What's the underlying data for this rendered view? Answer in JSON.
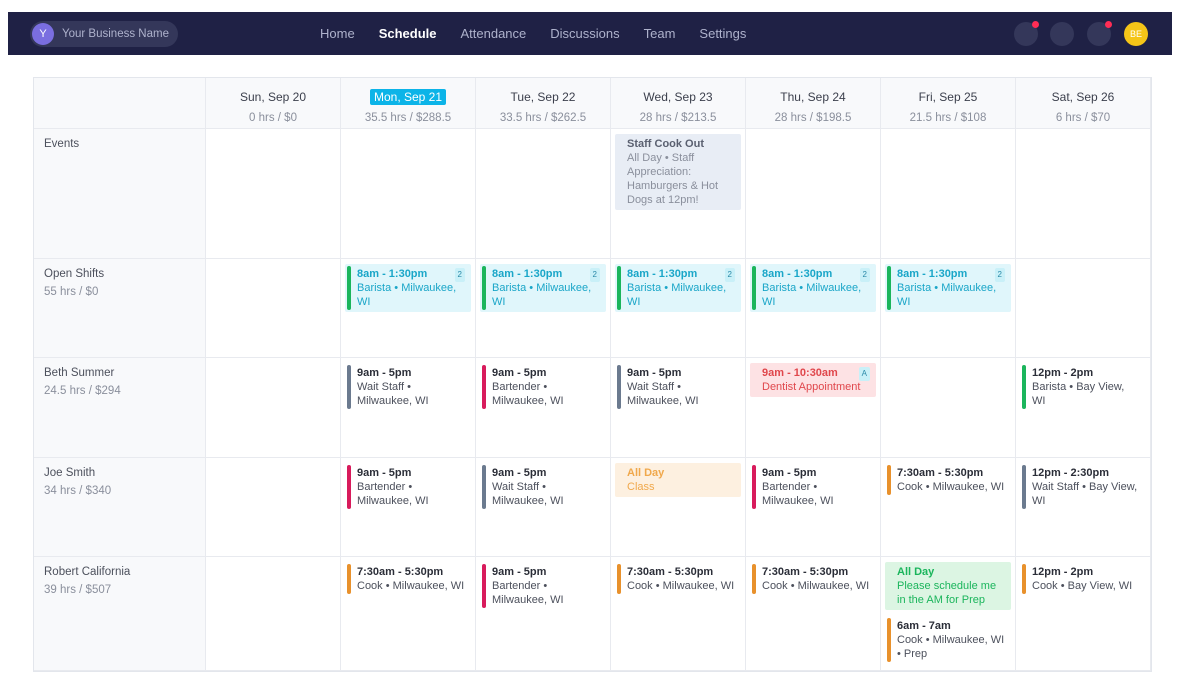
{
  "nav": {
    "avatar": "Y",
    "business": "Your Business Name",
    "items": [
      "Home",
      "Schedule",
      "Attendance",
      "Discussions",
      "Team",
      "Settings"
    ],
    "active": 1,
    "user": "BE"
  },
  "schedule": {
    "days": [
      {
        "date": "Sun, Sep 20",
        "total": "0 hrs / $0"
      },
      {
        "date": "Mon, Sep 21",
        "total": "35.5 hrs / $288.5",
        "today": true
      },
      {
        "date": "Tue, Sep 22",
        "total": "33.5 hrs / $262.5"
      },
      {
        "date": "Wed, Sep 23",
        "total": "28 hrs / $213.5"
      },
      {
        "date": "Thu, Sep 24",
        "total": "28 hrs / $198.5"
      },
      {
        "date": "Fri, Sep 25",
        "total": "21.5 hrs / $108"
      },
      {
        "date": "Sat, Sep 26",
        "total": "6 hrs / $70"
      }
    ],
    "rows": [
      {
        "name": "Events",
        "cells": [
          [],
          [],
          [],
          [
            {
              "title": "Staff Cook Out",
              "detail": "All Day • Staff Appreciation: Hamburgers & Hot Dogs at 12pm!",
              "background": "#e8edf5"
            }
          ],
          [],
          [],
          []
        ]
      },
      {
        "name": "Open Shifts",
        "total": "55 hrs / $0",
        "cells": [
          [],
          [
            {
              "time": "8am - 1:30pm",
              "detail": "Barista • Milwaukee, WI",
              "badge": "2",
              "color": "#1bb55c",
              "background": "#e0f6fb",
              "text": "#1aa6c8"
            }
          ],
          [
            {
              "time": "8am - 1:30pm",
              "detail": "Barista • Milwaukee, WI",
              "badge": "2",
              "color": "#1bb55c",
              "background": "#e0f6fb",
              "text": "#1aa6c8"
            }
          ],
          [
            {
              "time": "8am - 1:30pm",
              "detail": "Barista • Milwaukee, WI",
              "badge": "2",
              "color": "#1bb55c",
              "background": "#e0f6fb",
              "text": "#1aa6c8"
            }
          ],
          [
            {
              "time": "8am - 1:30pm",
              "detail": "Barista • Milwaukee, WI",
              "badge": "2",
              "color": "#1bb55c",
              "background": "#e0f6fb",
              "text": "#1aa6c8"
            }
          ],
          [
            {
              "time": "8am - 1:30pm",
              "detail": "Barista • Milwaukee, WI",
              "badge": "2",
              "color": "#1bb55c",
              "background": "#e0f6fb",
              "text": "#1aa6c8"
            }
          ],
          []
        ]
      },
      {
        "name": "Beth Summer",
        "total": "24.5 hrs / $294",
        "cells": [
          [],
          [
            {
              "time": "9am - 5pm",
              "detail": "Wait Staff • Milwaukee, WI",
              "color": "#6b7a8f"
            }
          ],
          [
            {
              "time": "9am - 5pm",
              "detail": "Bartender • Milwaukee, WI",
              "color": "#d81b5c"
            }
          ],
          [
            {
              "time": "9am - 5pm",
              "detail": "Wait Staff • Milwaukee, WI",
              "color": "#6b7a8f"
            }
          ],
          [
            {
              "time": "9am - 10:30am",
              "detail": "Dentist Appointment",
              "badge": "A",
              "background": "#fde2e4",
              "text": "#e0474c"
            }
          ],
          [],
          [
            {
              "time": "12pm - 2pm",
              "detail": "Barista • Bay View, WI",
              "color": "#1bb55c"
            }
          ]
        ]
      },
      {
        "name": "Joe Smith",
        "total": "34 hrs / $340",
        "cells": [
          [],
          [
            {
              "time": "9am - 5pm",
              "detail": "Bartender • Milwaukee, WI",
              "color": "#d81b5c"
            }
          ],
          [
            {
              "time": "9am - 5pm",
              "detail": "Wait Staff • Milwaukee, WI",
              "color": "#6b7a8f"
            }
          ],
          [
            {
              "time": "All Day",
              "detail": "Class",
              "background": "#fdf0e0",
              "text": "#f0a84b"
            }
          ],
          [
            {
              "time": "9am - 5pm",
              "detail": "Bartender • Milwaukee, WI",
              "color": "#d81b5c"
            }
          ],
          [
            {
              "time": "7:30am - 5:30pm",
              "detail": "Cook • Milwaukee, WI",
              "color": "#e8912c"
            }
          ],
          [
            {
              "time": "12pm - 2:30pm",
              "detail": "Wait Staff • Bay View, WI",
              "color": "#6b7a8f"
            }
          ]
        ]
      },
      {
        "name": "Robert California",
        "total": "39 hrs / $507",
        "cells": [
          [],
          [
            {
              "time": "7:30am - 5:30pm",
              "detail": "Cook • Milwaukee, WI",
              "color": "#e8912c"
            }
          ],
          [
            {
              "time": "9am - 5pm",
              "detail": "Bartender • Milwaukee, WI",
              "color": "#d81b5c"
            }
          ],
          [
            {
              "time": "7:30am - 5:30pm",
              "detail": "Cook • Milwaukee, WI",
              "color": "#e8912c"
            }
          ],
          [
            {
              "time": "7:30am - 5:30pm",
              "detail": "Cook • Milwaukee, WI",
              "color": "#e8912c"
            }
          ],
          [
            {
              "time": "All Day",
              "detail": "Please schedule me in the AM for Prep",
              "background": "#dcf5e3",
              "text": "#1bb55c"
            },
            {
              "time": "6am - 7am",
              "detail": "Cook • Milwaukee, WI • Prep",
              "color": "#e8912c"
            }
          ],
          [
            {
              "time": "12pm - 2pm",
              "detail": "Cook • Bay View, WI",
              "color": "#e8912c"
            }
          ]
        ]
      }
    ]
  }
}
